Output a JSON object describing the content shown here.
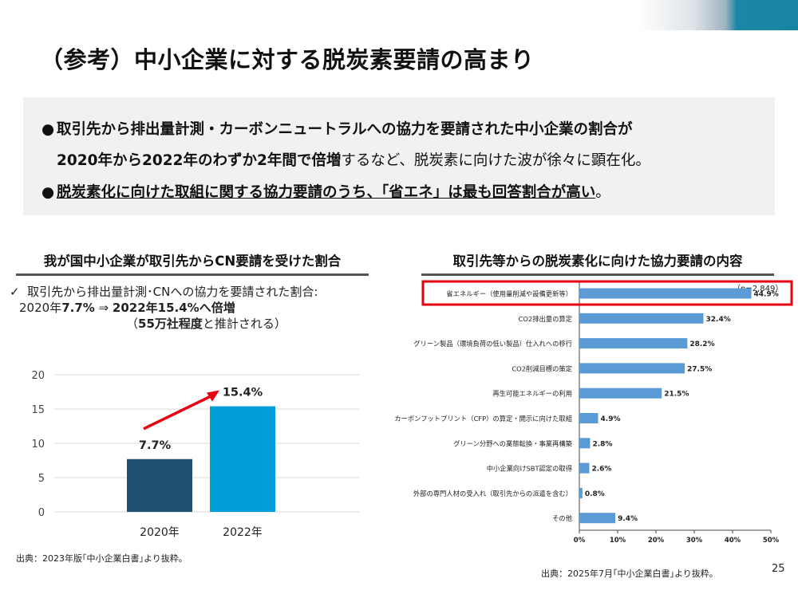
{
  "title": "（参考）中小企業に対する脱炭素要請の高まり",
  "summary": {
    "line1": "取引先から排出量計測・カーボンニュートラルへの協力を要請された中小企業の割合が",
    "line2_bold": "2020年から2022年のわずか2年間で倍増",
    "line2_rest": "するなど、脱炭素に向けた波が徐々に顕在化。",
    "line3_bold": "脱炭素化に向けた取組に関する協力要請のうち、「省エネ」は最も回答割合が高い",
    "line3_end": "。"
  },
  "left": {
    "heading": "我が国中小企業が取引先からCN要請を受けた割合",
    "note_check": "✓",
    "note_line1": "取引先から排出量計測･CNへの協力を要請された割合:",
    "note_2020": "2020年",
    "note_v1": "7.7%",
    "note_arrow": " ⇒ ",
    "note_v2": "2022年15.4%へ倍増",
    "note_open": "（",
    "note_bold": "55万社程度",
    "note_rest": "と推計される）",
    "source": "出典：2023年版｢中小企業白書｣より抜粋。"
  },
  "right": {
    "heading": "取引先等からの脱炭素化に向けた協力要請の内容",
    "n_label": "（n=2,849）",
    "source": "出典：2025年7月｢中小企業白書｣より抜粋。"
  },
  "page_number": "25",
  "colors": {
    "bar_2020": "#1f4e6e",
    "bar_2022": "#009fd9",
    "hbar": "#5b9bd5",
    "highlight": "#e60012",
    "arrow": "#e60012"
  },
  "chart_data": [
    {
      "type": "bar",
      "categories": [
        "2020年",
        "2022年"
      ],
      "values": [
        7.7,
        15.4
      ],
      "data_labels": [
        "7.7%",
        "15.4%"
      ],
      "yticks": [
        0,
        5,
        10,
        15,
        20
      ],
      "ylim": [
        0,
        20
      ],
      "grid": true,
      "annotation": "arrow from 2020 to 2022"
    },
    {
      "type": "bar",
      "orientation": "horizontal",
      "categories": [
        "省エネルギー（使用量削減や設備更新等）",
        "CO2排出量の算定",
        "グリーン製品（環境負荷の低い製品）仕入れへの移行",
        "CO2削減目標の策定",
        "再生可能エネルギーの利用",
        "カーボンフットプリント（CFP）の算定・開示に向けた取組",
        "グリーン分野への業態転換・事業再構築",
        "中小企業向けSBT認定の取得",
        "外部の専門人材の受入れ（取引先からの派遣を含む）",
        "その他"
      ],
      "values": [
        44.9,
        32.4,
        28.2,
        27.5,
        21.5,
        4.9,
        2.8,
        2.6,
        0.8,
        9.4
      ],
      "data_labels": [
        "44.9%",
        "32.4%",
        "28.2%",
        "27.5%",
        "21.5%",
        "4.9%",
        "2.8%",
        "2.6%",
        "0.8%",
        "9.4%"
      ],
      "xticks": [
        "0%",
        "10%",
        "20%",
        "30%",
        "40%",
        "50%"
      ],
      "xlim": [
        0,
        50
      ],
      "highlighted_category": "省エネルギー（使用量削減や設備更新等）"
    }
  ]
}
